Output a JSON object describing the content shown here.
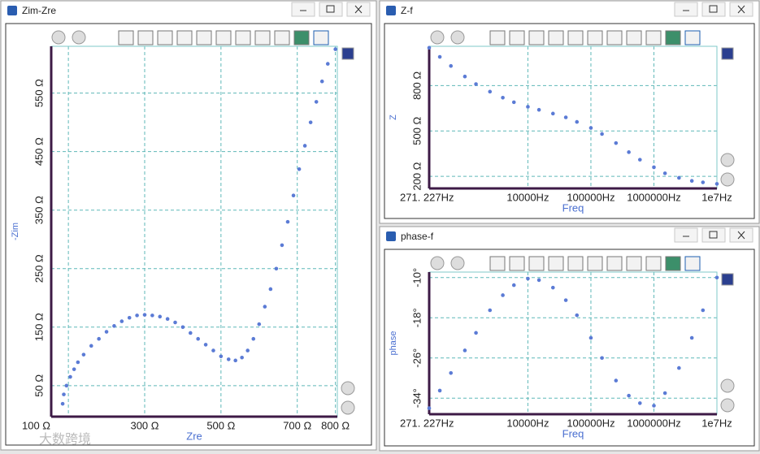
{
  "chart_data": [
    {
      "type": "scatter",
      "window_title": "Zim-Zre",
      "x_label": "Zre",
      "y_label": "-Zim",
      "color": "#5b7bd5",
      "grid": true,
      "log_x": false,
      "x": [
        85,
        88,
        95,
        105,
        115,
        125,
        140,
        160,
        180,
        200,
        220,
        240,
        260,
        280,
        300,
        320,
        340,
        360,
        380,
        400,
        420,
        440,
        460,
        480,
        500,
        520,
        538,
        555,
        570,
        585,
        600,
        615,
        630,
        645,
        660,
        675,
        690,
        705,
        720,
        735,
        750,
        765,
        780,
        800
      ],
      "values": [
        19,
        35,
        50,
        65,
        78,
        90,
        103,
        118,
        130,
        142,
        152,
        160,
        166,
        170,
        171,
        170,
        168,
        164,
        158,
        150,
        140,
        130,
        120,
        110,
        100,
        95,
        93,
        98,
        110,
        130,
        155,
        185,
        215,
        250,
        290,
        330,
        375,
        420,
        460,
        500,
        535,
        570,
        600,
        625
      ],
      "xlim": [
        55,
        805
      ],
      "ylim": [
        -3,
        630
      ],
      "xticks": [
        {
          "value": 100,
          "label": "100 Ω"
        },
        {
          "value": 300,
          "label": "300 Ω"
        },
        {
          "value": 500,
          "label": "500 Ω"
        },
        {
          "value": 700,
          "label": "700 Ω"
        },
        {
          "value": 800,
          "label": "800 Ω"
        }
      ],
      "yticks": [
        {
          "value": 50,
          "label": "50 Ω"
        },
        {
          "value": 150,
          "label": "150 Ω"
        },
        {
          "value": 250,
          "label": "250 Ω"
        },
        {
          "value": 350,
          "label": "350 Ω"
        },
        {
          "value": 450,
          "label": "450 Ω"
        },
        {
          "value": 550,
          "label": "550 Ω"
        }
      ]
    },
    {
      "type": "scatter",
      "window_title": "Z-f",
      "x_label": "Freq",
      "y_label": "Z",
      "color": "#5b7bd5",
      "grid": true,
      "log_x": true,
      "x": [
        271.227,
        400,
        600,
        1000,
        1500,
        2500,
        4000,
        6000,
        10000,
        15000,
        25000,
        40000,
        60000,
        100000,
        150000,
        250000,
        400000,
        600000,
        1000000,
        1500000,
        2500000,
        4000000,
        6000000,
        10000000
      ],
      "values": [
        1050,
        990,
        930,
        860,
        810,
        760,
        720,
        690,
        660,
        640,
        615,
        590,
        560,
        520,
        480,
        420,
        360,
        310,
        260,
        220,
        190,
        170,
        160,
        150
      ],
      "xlim": [
        271.227,
        10000000
      ],
      "ylim": [
        120,
        1060
      ],
      "xticks": [
        {
          "value": 271.227,
          "label": "271. 227Hz"
        },
        {
          "value": 10000,
          "label": "10000Hz"
        },
        {
          "value": 100000,
          "label": "100000Hz"
        },
        {
          "value": 1000000,
          "label": "1000000Hz"
        },
        {
          "value": 10000000,
          "label": "1e7Hz"
        }
      ],
      "yticks": [
        {
          "value": 200,
          "label": "200 Ω"
        },
        {
          "value": 500,
          "label": "500 Ω"
        },
        {
          "value": 800,
          "label": "800 Ω"
        }
      ]
    },
    {
      "type": "scatter",
      "window_title": "phase-f",
      "x_label": "Freq",
      "y_label": "phase",
      "color": "#5b7bd5",
      "grid": true,
      "log_x": true,
      "x": [
        271.227,
        400,
        600,
        1000,
        1500,
        2500,
        4000,
        6000,
        10000,
        15000,
        25000,
        40000,
        60000,
        100000,
        150000,
        250000,
        400000,
        600000,
        1000000,
        1500000,
        2500000,
        4000000,
        6000000,
        10000000
      ],
      "values": [
        -36,
        -32.5,
        -29,
        -24.5,
        -21,
        -16.5,
        -13.5,
        -11.5,
        -10.2,
        -10.5,
        -12,
        -14.5,
        -17.5,
        -22,
        -26,
        -30.5,
        -33.5,
        -35,
        -35.5,
        -33,
        -28,
        -22,
        -16.5,
        -10
      ],
      "xlim": [
        271.227,
        10000000
      ],
      "ylim": [
        -37.2,
        -8.9
      ],
      "xticks": [
        {
          "value": 271.227,
          "label": "271. 227Hz"
        },
        {
          "value": 10000,
          "label": "10000Hz"
        },
        {
          "value": 100000,
          "label": "100000Hz"
        },
        {
          "value": 1000000,
          "label": "1000000Hz"
        },
        {
          "value": 10000000,
          "label": "1e7Hz"
        }
      ],
      "yticks": [
        {
          "value": -34,
          "label": "-34°"
        },
        {
          "value": -26,
          "label": "-26°"
        },
        {
          "value": -18,
          "label": "-18°"
        },
        {
          "value": -10,
          "label": "-10°"
        }
      ]
    }
  ],
  "watermark": "大数跨境"
}
